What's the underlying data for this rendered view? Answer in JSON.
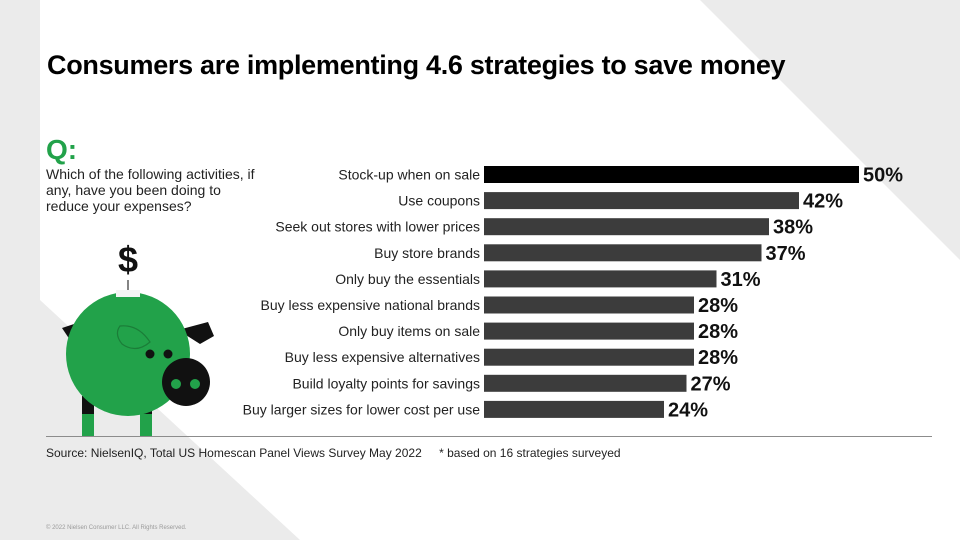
{
  "slide": {
    "title": "Consumers are implementing 4.6 strategies to save money",
    "question_mark": "Q:",
    "question": "Which of the following activities, if any, have you been doing to reduce your expenses?",
    "dollar_sign": "$",
    "source": "Source: NielsenIQ, Total US  Homescan Panel Views Survey May 2022",
    "footnote": "* based on 16 strategies surveyed",
    "copyright": "© 2022 Nielsen Consumer LLC. All Rights Reserved."
  },
  "colors": {
    "highlight_bar": "#000000",
    "bar": "#3c3c3c",
    "accent_green": "#22a24a",
    "background": "#ebebeb"
  },
  "icons": [
    "piggy-bank-icon",
    "dollar-icon",
    "down-arrow-icon"
  ],
  "chart_data": {
    "type": "bar",
    "orientation": "horizontal",
    "categories": [
      "Stock-up when on sale",
      "Use coupons",
      "Seek out stores with lower prices",
      "Buy store brands",
      "Only buy the essentials",
      "Buy less expensive national brands",
      "Only buy items on sale",
      "Buy less expensive alternatives",
      "Build loyalty points for savings",
      "Buy larger sizes for lower cost per use"
    ],
    "values": [
      50,
      42,
      38,
      37,
      31,
      28,
      28,
      28,
      27,
      24
    ],
    "value_labels": [
      "50%",
      "42%",
      "38%",
      "37%",
      "31%",
      "28%",
      "28%",
      "28%",
      "27%",
      "24%"
    ],
    "xlim": [
      0,
      50
    ],
    "highlight_index": 0,
    "grid": false
  }
}
